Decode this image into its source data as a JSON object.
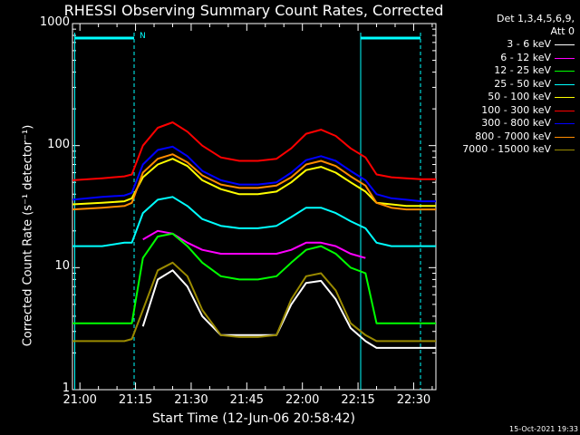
{
  "title": "RHESSI Observing Summary Count Rates, Corrected",
  "xlabel": "Start Time (12-Jun-06 20:58:42)",
  "ylabel": "Corrected Count Rate (s⁻¹ detector⁻¹)",
  "footer": "15-Oct-2021 19:33",
  "legend_header": [
    "Det 1,3,4,5,6,9,",
    "Att 0"
  ],
  "flag_label": "N",
  "chart_data": {
    "type": "line",
    "title": "RHESSI Observing Summary Count Rates, Corrected",
    "xlabel": "Start Time (12-Jun-06 20:58:42)",
    "ylabel": "Corrected Count Rate (s⁻¹ detector⁻¹)",
    "yscale": "log",
    "ylim": [
      1,
      1000
    ],
    "xlim": [
      "20:58",
      "22:36"
    ],
    "x_ticks": [
      "21:00",
      "21:15",
      "21:30",
      "21:45",
      "22:00",
      "22:15",
      "22:30"
    ],
    "y_ticks": [
      "1",
      "10",
      "100",
      "1000"
    ],
    "x_minutes": [
      0,
      8,
      14,
      16,
      19,
      23,
      27,
      31,
      35,
      40,
      45,
      50,
      55,
      59,
      63,
      67,
      71,
      75,
      79,
      82,
      86,
      90,
      94,
      98
    ],
    "series": [
      {
        "name": "3 - 6 keV",
        "color": "#ffffff",
        "values": [
          null,
          null,
          null,
          null,
          3.3,
          8.0,
          9.5,
          7.0,
          4.0,
          2.8,
          2.8,
          2.8,
          2.8,
          5.0,
          7.5,
          7.8,
          5.5,
          3.2,
          2.5,
          2.2,
          2.2,
          2.2,
          2.2,
          2.2
        ]
      },
      {
        "name": "6 - 12 keV",
        "color": "#ff00ff",
        "values": [
          null,
          null,
          null,
          null,
          17,
          20,
          19,
          16,
          14,
          13,
          13,
          13,
          13,
          14,
          16,
          16,
          15,
          13,
          12,
          null,
          null,
          null,
          null,
          null
        ]
      },
      {
        "name": "12 - 25 keV",
        "color": "#00ff00",
        "values": [
          3.5,
          3.5,
          3.5,
          3.5,
          12,
          18,
          19,
          15,
          11,
          8.5,
          8.0,
          8.0,
          8.5,
          11,
          14,
          15,
          13,
          10,
          9,
          3.5,
          3.5,
          3.5,
          3.5,
          3.5
        ]
      },
      {
        "name": "25 - 50 keV",
        "color": "#00ffff",
        "values": [
          15,
          15,
          16,
          16,
          28,
          36,
          38,
          32,
          25,
          22,
          21,
          21,
          22,
          26,
          31,
          31,
          28,
          24,
          21,
          16,
          15,
          15,
          15,
          15
        ]
      },
      {
        "name": "50 - 100 keV",
        "color": "#ffff00",
        "values": [
          33,
          34,
          35,
          37,
          55,
          70,
          78,
          68,
          52,
          44,
          40,
          40,
          42,
          50,
          63,
          67,
          60,
          50,
          42,
          34,
          33,
          32,
          32,
          32
        ]
      },
      {
        "name": "100 - 300 keV",
        "color": "#ff0000",
        "values": [
          52,
          54,
          56,
          58,
          100,
          140,
          155,
          130,
          100,
          80,
          75,
          75,
          78,
          95,
          125,
          135,
          120,
          95,
          80,
          58,
          55,
          54,
          53,
          53
        ]
      },
      {
        "name": "300 - 800 keV",
        "color": "#0000ff",
        "values": [
          36,
          38,
          39,
          41,
          70,
          92,
          98,
          82,
          62,
          52,
          48,
          48,
          50,
          60,
          76,
          82,
          75,
          62,
          52,
          40,
          37,
          36,
          35,
          35
        ]
      },
      {
        "name": "800 - 7000 keV",
        "color": "#ff8c00",
        "values": [
          30,
          31,
          32,
          34,
          60,
          78,
          85,
          73,
          57,
          48,
          45,
          45,
          47,
          55,
          70,
          75,
          68,
          56,
          47,
          34,
          31,
          30,
          30,
          30
        ]
      },
      {
        "name": "7000 - 15000 keV",
        "color": "#9a8a00",
        "values": [
          2.5,
          2.5,
          2.5,
          2.6,
          4.5,
          9.5,
          11.0,
          8.5,
          4.5,
          2.8,
          2.7,
          2.7,
          2.8,
          5.5,
          8.5,
          9.0,
          6.5,
          3.5,
          2.8,
          2.5,
          2.5,
          2.5,
          2.5,
          2.5
        ]
      }
    ]
  }
}
